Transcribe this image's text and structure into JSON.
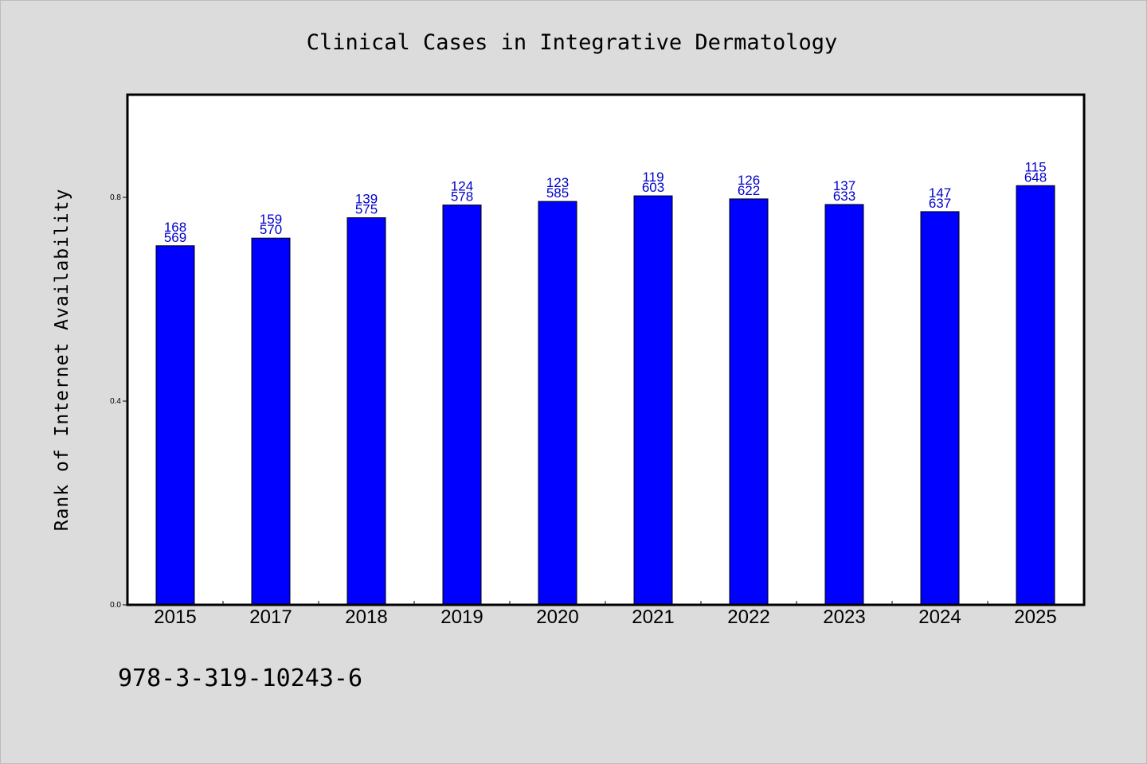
{
  "chart_data": {
    "type": "bar",
    "title": "Clinical Cases in Integrative Dermatology",
    "xlabel": "",
    "ylabel": "Rank of Internet Availability",
    "categories": [
      "2015",
      "2017",
      "2018",
      "2019",
      "2020",
      "2021",
      "2022",
      "2023",
      "2024",
      "2025"
    ],
    "values": [
      0.705,
      0.72,
      0.76,
      0.785,
      0.792,
      0.803,
      0.797,
      0.786,
      0.772,
      0.823
    ],
    "label_top": [
      "168",
      "159",
      "139",
      "124",
      "123",
      "119",
      "126",
      "137",
      "147",
      "115"
    ],
    "label_bottom": [
      "569",
      "570",
      "575",
      "578",
      "585",
      "603",
      "622",
      "633",
      "637",
      "648"
    ],
    "ylim": [
      0.0,
      1.0
    ],
    "yticks": [
      0.0,
      0.4,
      0.8
    ],
    "ytick_labels": [
      "0.0",
      "0.4",
      "0.8"
    ],
    "grid": false,
    "bar_color": "#0000ff",
    "label_color": "#0000cc"
  },
  "footer": {
    "isbn": "978-3-319-10243-6"
  }
}
